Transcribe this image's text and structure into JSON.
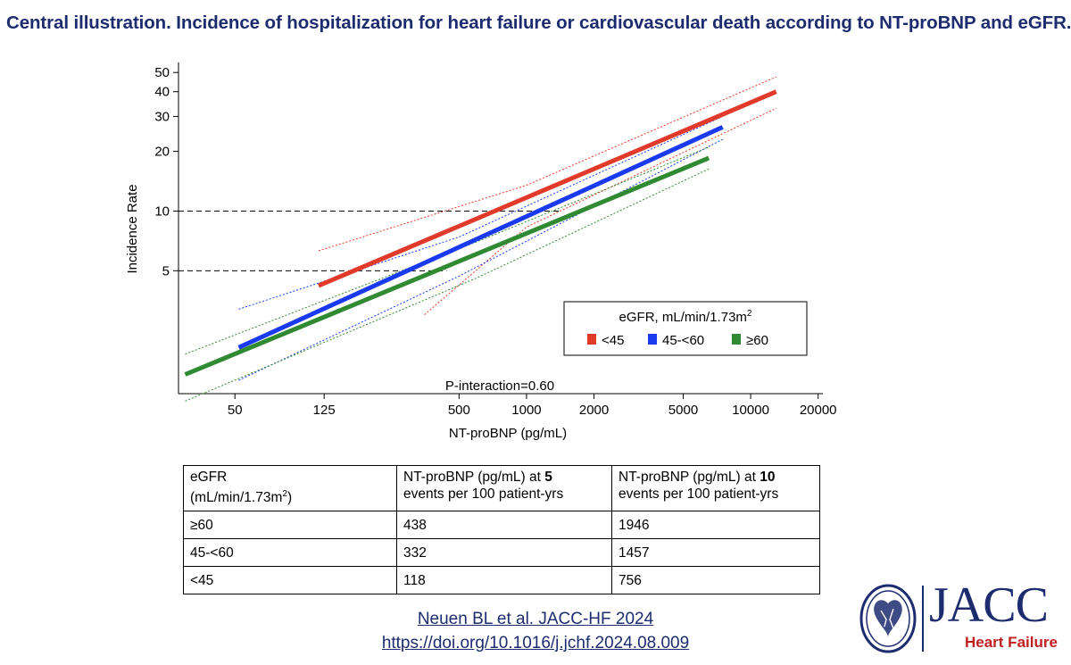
{
  "title": "Central illustration. Incidence of hospitalization for heart failure or cardiovascular death according to NT-proBNP and eGFR.",
  "chart_data": {
    "type": "line",
    "xscale": "log",
    "yscale": "log",
    "xlabel": "NT-proBNP (pg/mL)",
    "ylabel": "Incidence Rate",
    "xlim": [
      28,
      21000
    ],
    "ylim": [
      1.2,
      55
    ],
    "x_ticks": [
      50,
      125,
      500,
      1000,
      2000,
      5000,
      10000,
      20000
    ],
    "y_ticks": [
      5,
      10,
      20,
      30,
      40,
      50
    ],
    "reference_lines": [
      {
        "y": 10,
        "x_end": 1400
      },
      {
        "y": 5,
        "x_end": 440
      }
    ],
    "legend": {
      "title_prefix": "eGFR, mL/min/1.73m",
      "title_sup": "2",
      "position": "lower-right"
    },
    "annotation": "P-interaction=0.60",
    "series": [
      {
        "name": "<45",
        "color": "#e23a2a",
        "line": [
          [
            118,
            4.2
          ],
          [
            13000,
            40
          ]
        ],
        "ci_upper": [
          [
            118,
            6.3
          ],
          [
            1000,
            13.5
          ],
          [
            13000,
            47.5
          ]
        ],
        "ci_lower": [
          [
            350,
            3.0
          ],
          [
            1000,
            8.3
          ],
          [
            13000,
            33
          ]
        ]
      },
      {
        "name": "45-<60",
        "color": "#1a3af0",
        "line": [
          [
            52,
            2.05
          ],
          [
            7500,
            26.5
          ]
        ],
        "ci_upper": [
          [
            52,
            3.2
          ],
          [
            500,
            7.4
          ],
          [
            7500,
            30
          ]
        ],
        "ci_lower": [
          [
            52,
            1.4
          ],
          [
            500,
            4.7
          ],
          [
            7500,
            23
          ]
        ]
      },
      {
        "name": "≥60",
        "color": "#2f8a32",
        "line": [
          [
            30,
            1.5
          ],
          [
            6500,
            18.5
          ]
        ],
        "ci_upper": [
          [
            30,
            1.9
          ],
          [
            600,
            7.0
          ],
          [
            6500,
            21
          ]
        ],
        "ci_lower": [
          [
            30,
            1.1
          ],
          [
            600,
            4.6
          ],
          [
            6500,
            16.3
          ]
        ]
      }
    ]
  },
  "table": {
    "header_col1_line1": "eGFR",
    "header_col1_line2_prefix": "(mL/min/1.73m",
    "header_col1_sup": "2",
    "header_col1_line2_suffix": ")",
    "header_col2_line1_prefix": "NT-proBNP (pg/mL) at ",
    "header_col2_bold": "5",
    "header_col2_line2": "events per 100 patient-yrs",
    "header_col3_line1_prefix": "NT-proBNP (pg/mL) at ",
    "header_col3_bold": "10",
    "header_col3_line2": "events per 100 patient-yrs",
    "rows": [
      {
        "egfr": "≥60",
        "at5": "438",
        "at10": "1946"
      },
      {
        "egfr": "45-<60",
        "at5": "332",
        "at10": "1457"
      },
      {
        "egfr": "<45",
        "at5": "118",
        "at10": "756"
      }
    ]
  },
  "citation": {
    "line1": "Neuen BL et al. JACC-HF 2024",
    "line2": "https://doi.org/10.1016/j.jchf.2024.08.009"
  },
  "logo": {
    "name": "JACC",
    "subtitle": "Heart Failure"
  }
}
